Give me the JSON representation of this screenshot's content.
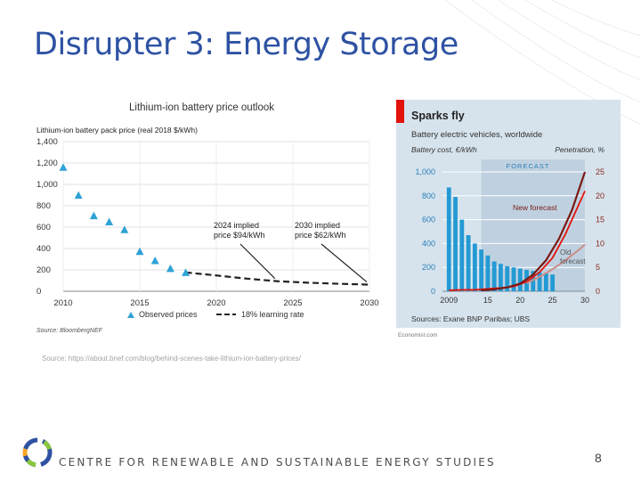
{
  "slide": {
    "title": "Disrupter 3: Energy Storage",
    "source_note": "Source: https://about.bnef.com/blog/behind-scenes-take-lithium-ion-battery-prices/",
    "footer": "CENTRE FOR RENEWABLE AND SUSTAINABLE ENERGY STUDIES",
    "page_number": "8"
  },
  "colors": {
    "title": "#2e52a3",
    "observed": "#2fa2d6",
    "econ_bg": "#d6e3ed",
    "econ_forecast_bg": "#bfd1e0",
    "econ_bars": "#239ad3",
    "econ_red": "#e3120b",
    "new_forecast": "#7a1a14",
    "old_forecast": "#cc8b85"
  },
  "chart_data": [
    {
      "type": "scatter",
      "title": "Lithium-ion battery price outlook",
      "ylabel": "Lithium-ion battery pack price (real 2018 $/kWh)",
      "ylim": [
        0,
        1400
      ],
      "yticks": [
        "0",
        "200",
        "400",
        "600",
        "800",
        "1,000",
        "1,200",
        "1,400"
      ],
      "yticks_values": [
        0,
        200,
        400,
        600,
        800,
        1000,
        1200,
        1400
      ],
      "xlim": [
        2010,
        2030
      ],
      "xticks": [
        "2010",
        "2015",
        "2020",
        "2025",
        "2030"
      ],
      "xticks_values": [
        2010,
        2015,
        2020,
        2025,
        2030
      ],
      "grid": true,
      "legend": "bottom",
      "series": [
        {
          "name": "Observed prices",
          "style": "triangle",
          "x": [
            2010,
            2011,
            2012,
            2013,
            2014,
            2015,
            2016,
            2017,
            2018
          ],
          "y": [
            1160,
            899,
            707,
            650,
            577,
            373,
            288,
            214,
            176
          ]
        },
        {
          "name": "18% learning rate",
          "style": "dashed",
          "x": [
            2018,
            2020,
            2022,
            2024,
            2026,
            2028,
            2030
          ],
          "y": [
            176,
            148,
            118,
            94,
            80,
            70,
            62
          ]
        }
      ],
      "annotations": [
        {
          "lines": [
            "2024 implied",
            "price $94/kWh"
          ],
          "x": 2024,
          "y": 94
        },
        {
          "lines": [
            "2030 implied",
            "price $62/kWh"
          ],
          "x": 2030,
          "y": 62
        }
      ],
      "source": "Source: BloombergNEF"
    },
    {
      "type": "bar",
      "title": "Sparks fly",
      "subtitle": "Battery electric vehicles, worldwide",
      "ylabel_left": "Battery cost, €/kWh",
      "ylabel_right": "Penetration, %",
      "ylim_left": [
        0,
        1000
      ],
      "ylim_right": [
        0,
        25
      ],
      "yticks_left": [
        "0",
        "200",
        "400",
        "600",
        "800",
        "1,000"
      ],
      "yticks_left_values": [
        0,
        200,
        400,
        600,
        800,
        1000
      ],
      "yticks_right": [
        "0",
        "5",
        "10",
        "15",
        "20",
        "25"
      ],
      "yticks_right_values": [
        0,
        5,
        10,
        15,
        20,
        25
      ],
      "xlim": [
        2008,
        2030
      ],
      "xticks": [
        "2009",
        "15",
        "20",
        "25",
        "30"
      ],
      "xticks_values": [
        2009,
        2015,
        2020,
        2025,
        2030
      ],
      "forecast_label": "FORECAST",
      "forecast_start": 2014,
      "bars": {
        "name": "Battery cost, €/kWh",
        "x": [
          2009,
          2010,
          2011,
          2012,
          2013,
          2014,
          2015,
          2016,
          2017,
          2018,
          2019,
          2020,
          2021,
          2022,
          2023,
          2024,
          2025
        ],
        "values": [
          870,
          790,
          600,
          470,
          400,
          350,
          300,
          250,
          230,
          210,
          200,
          190,
          180,
          170,
          160,
          150,
          140
        ]
      },
      "lines": [
        {
          "name": "Battery cost",
          "x": [
            2009,
            2011,
            2013,
            2015,
            2017,
            2019,
            2021,
            2023,
            2025,
            2027,
            2029,
            2030
          ],
          "y": [
            0.2,
            0.3,
            0.3,
            0.5,
            0.7,
            1,
            2,
            4,
            7,
            12,
            18,
            21
          ]
        },
        {
          "name": "New forecast",
          "x": [
            2014,
            2016,
            2018,
            2020,
            2022,
            2024,
            2026,
            2028,
            2030
          ],
          "y": [
            0.2,
            0.4,
            0.8,
            1.6,
            3.5,
            6.5,
            11,
            17,
            25
          ]
        },
        {
          "name": "Old forecast",
          "x": [
            2021,
            2023,
            2025,
            2027,
            2029,
            2030
          ],
          "y": [
            1.7,
            3,
            4.6,
            6.5,
            8.6,
            9.8
          ]
        }
      ],
      "source": "Sources: Exane BNP Paribas; UBS",
      "credit": "Economist.com"
    }
  ]
}
